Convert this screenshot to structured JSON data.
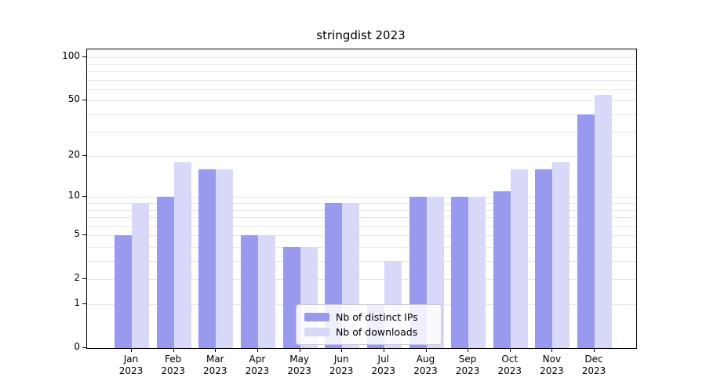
{
  "title": "stringdist 2023",
  "legend": {
    "items": [
      {
        "label": "Nb of distinct IPs",
        "color": "#9999ee"
      },
      {
        "label": "Nb of downloads",
        "color": "#d8d8f8"
      }
    ]
  },
  "chart_data": {
    "type": "bar",
    "title": "stringdist 2023",
    "scale": "log1p",
    "categories": [
      "Jan",
      "Feb",
      "Mar",
      "Apr",
      "May",
      "Jun",
      "Jul",
      "Aug",
      "Sep",
      "Oct",
      "Nov",
      "Dec"
    ],
    "year": "2023",
    "series": [
      {
        "name": "Nb of distinct IPs",
        "color": "#9999ee",
        "values": [
          5,
          10,
          16,
          5,
          4,
          9,
          1,
          10,
          10,
          11,
          16,
          40
        ]
      },
      {
        "name": "Nb of downloads",
        "color": "#d8d8f8",
        "values": [
          9,
          18,
          16,
          5,
          4,
          9,
          3,
          10,
          10,
          16,
          18,
          55
        ]
      }
    ],
    "yticks": [
      0,
      1,
      2,
      5,
      10,
      20,
      50,
      100
    ],
    "gridlines": [
      1,
      2,
      3,
      4,
      5,
      6,
      7,
      8,
      9,
      10,
      20,
      30,
      40,
      50,
      60,
      70,
      80,
      90,
      100
    ],
    "ylim": [
      0,
      115
    ],
    "xlabel": "",
    "ylabel": "",
    "grid": true,
    "legend_position": "lower-center-inside",
    "gridline_color": "#e6e6e6"
  }
}
